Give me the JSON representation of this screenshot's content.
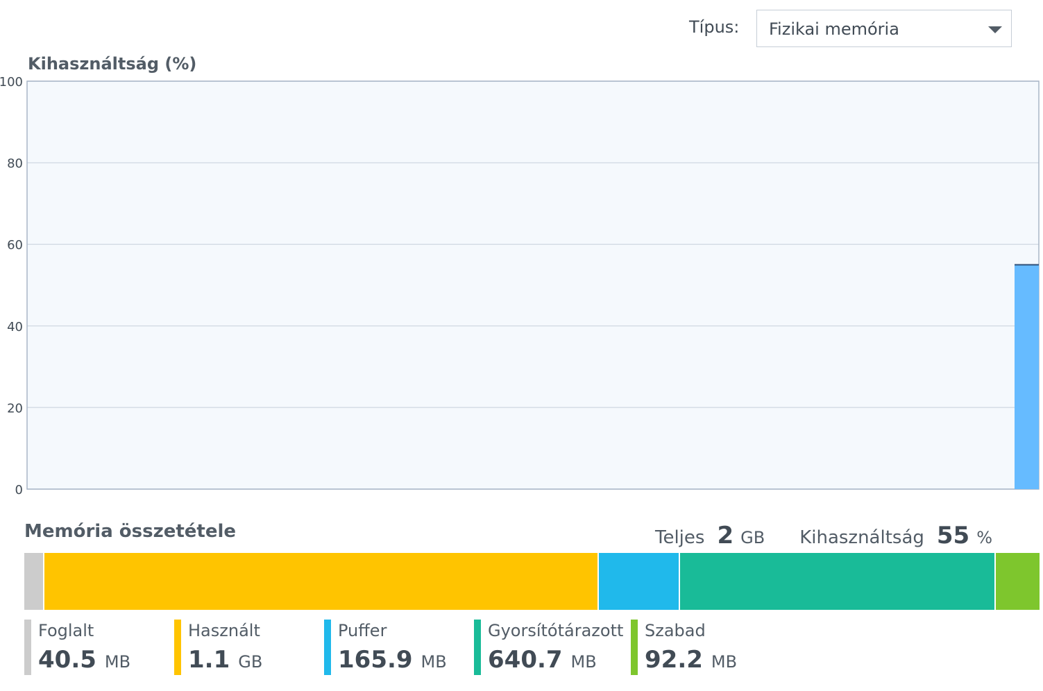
{
  "toolbar": {
    "type_label": "Típus:",
    "type_select_value": "Fizikai memória"
  },
  "chart_data": {
    "type": "area",
    "title": "Kihasználtság (%)",
    "ylim": [
      0,
      100
    ],
    "y_ticks": [
      "100",
      "80",
      "60",
      "40",
      "20",
      "0"
    ],
    "grid": true,
    "series": [
      {
        "values": [
          55
        ],
        "color": "#66bbff",
        "line_color": "#2f4f77"
      }
    ]
  },
  "composition": {
    "title": "Memória összetétele",
    "total_label": "Teljes",
    "total_value": "2",
    "total_unit": "GB",
    "usage_label": "Kihasználtság",
    "usage_value": "55",
    "usage_unit": "%",
    "segments": [
      {
        "name": "Foglalt",
        "value": "40.5",
        "unit": "MB",
        "mb": 40.5,
        "color": "#cccccc"
      },
      {
        "name": "Használt",
        "value": "1.1",
        "unit": "GB",
        "mb": 1126.4,
        "color": "#ffc400"
      },
      {
        "name": "Puffer",
        "value": "165.9",
        "unit": "MB",
        "mb": 165.9,
        "color": "#20b9eb"
      },
      {
        "name": "Gyorsítótárazott",
        "value": "640.7",
        "unit": "MB",
        "mb": 640.7,
        "color": "#19bb98"
      },
      {
        "name": "Szabad",
        "value": "92.2",
        "unit": "MB",
        "mb": 92.2,
        "color": "#7ec62d"
      }
    ]
  }
}
